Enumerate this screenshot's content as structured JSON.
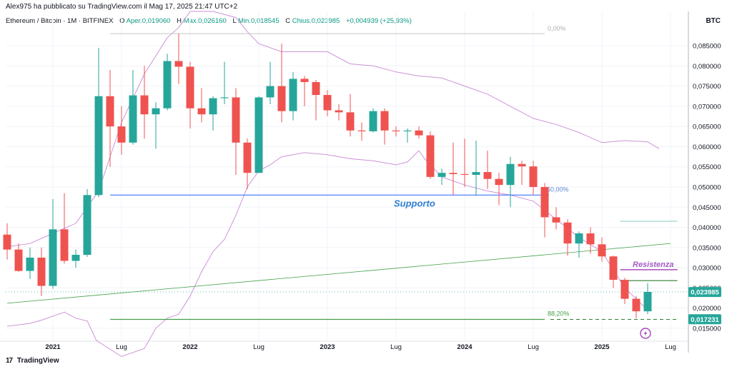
{
  "header": {
    "published": "Alex975 ha pubblicato su TradingView.com il Mag 17, 2025 21:47 UTC+2",
    "symbol": "Ethereum / Bitcoin · 1M · BITFINEX",
    "o_label": "O",
    "open": "Aper.0,019060",
    "h_label": "H",
    "high": "Max.0,026160",
    "l_label": "L",
    "low": "Min.0,018545",
    "c_label": "C",
    "close": "Chius.0,023985",
    "change": "+0,004939 (+25,93%)"
  },
  "currency": "BTC",
  "footer": {
    "logo": "17",
    "brand": "TradingView"
  },
  "colors": {
    "up": "#26a69a",
    "down": "#ef5350",
    "band": "#ce93d8",
    "support": "#2962ff",
    "trend": "#43a047",
    "resist": "#9c27b0"
  },
  "chart_data": {
    "type": "candlestick",
    "y_ticks": [
      "0,085000",
      "0,080000",
      "0,075000",
      "0,070000",
      "0,065000",
      "0,060000",
      "0,055000",
      "0,050000",
      "0,045000",
      "0,040000",
      "0,035000",
      "0,030000",
      "0,025000",
      "0,020000",
      "0,015000"
    ],
    "y_values": [
      0.085,
      0.08,
      0.075,
      0.07,
      0.065,
      0.06,
      0.055,
      0.05,
      0.045,
      0.04,
      0.035,
      0.03,
      0.025,
      0.02,
      0.015
    ],
    "ylim": [
      0.0118,
      0.0935
    ],
    "x_ticks": [
      {
        "label": "2021",
        "i": 4
      },
      {
        "label": "Lug",
        "i": 10
      },
      {
        "label": "2022",
        "i": 16
      },
      {
        "label": "Lug",
        "i": 22
      },
      {
        "label": "2023",
        "i": 28
      },
      {
        "label": "Lug",
        "i": 34
      },
      {
        "label": "2024",
        "i": 40
      },
      {
        "label": "Lug",
        "i": 46
      },
      {
        "label": "2025",
        "i": 52
      },
      {
        "label": "Lug",
        "i": 58
      }
    ],
    "candles": [
      {
        "o": 0.0382,
        "h": 0.041,
        "l": 0.032,
        "c": 0.0345
      },
      {
        "o": 0.0345,
        "h": 0.036,
        "l": 0.029,
        "c": 0.0292
      },
      {
        "o": 0.0292,
        "h": 0.035,
        "l": 0.0272,
        "c": 0.0325
      },
      {
        "o": 0.0325,
        "h": 0.035,
        "l": 0.023,
        "c": 0.0255
      },
      {
        "o": 0.0255,
        "h": 0.047,
        "l": 0.0248,
        "c": 0.0395
      },
      {
        "o": 0.0395,
        "h": 0.0485,
        "l": 0.031,
        "c": 0.0317
      },
      {
        "o": 0.0317,
        "h": 0.0345,
        "l": 0.03,
        "c": 0.0332
      },
      {
        "o": 0.0332,
        "h": 0.0495,
        "l": 0.0327,
        "c": 0.048
      },
      {
        "o": 0.048,
        "h": 0.0845,
        "l": 0.0475,
        "c": 0.0725
      },
      {
        "o": 0.0725,
        "h": 0.079,
        "l": 0.055,
        "c": 0.065
      },
      {
        "o": 0.065,
        "h": 0.07,
        "l": 0.058,
        "c": 0.061
      },
      {
        "o": 0.061,
        "h": 0.079,
        "l": 0.0605,
        "c": 0.0727
      },
      {
        "o": 0.0727,
        "h": 0.08,
        "l": 0.062,
        "c": 0.068
      },
      {
        "o": 0.068,
        "h": 0.071,
        "l": 0.0595,
        "c": 0.0695
      },
      {
        "o": 0.0695,
        "h": 0.083,
        "l": 0.069,
        "c": 0.0812
      },
      {
        "o": 0.0812,
        "h": 0.088,
        "l": 0.0755,
        "c": 0.0798
      },
      {
        "o": 0.0798,
        "h": 0.081,
        "l": 0.0645,
        "c": 0.0695
      },
      {
        "o": 0.0695,
        "h": 0.0745,
        "l": 0.066,
        "c": 0.068
      },
      {
        "o": 0.068,
        "h": 0.0725,
        "l": 0.064,
        "c": 0.072
      },
      {
        "o": 0.072,
        "h": 0.081,
        "l": 0.0705,
        "c": 0.0722
      },
      {
        "o": 0.0722,
        "h": 0.0745,
        "l": 0.053,
        "c": 0.061
      },
      {
        "o": 0.061,
        "h": 0.062,
        "l": 0.0495,
        "c": 0.0535
      },
      {
        "o": 0.0535,
        "h": 0.0725,
        "l": 0.0535,
        "c": 0.0722
      },
      {
        "o": 0.0722,
        "h": 0.081,
        "l": 0.0705,
        "c": 0.075
      },
      {
        "o": 0.075,
        "h": 0.0855,
        "l": 0.066,
        "c": 0.0688
      },
      {
        "o": 0.0688,
        "h": 0.0785,
        "l": 0.0665,
        "c": 0.0768
      },
      {
        "o": 0.0768,
        "h": 0.0775,
        "l": 0.07,
        "c": 0.076
      },
      {
        "o": 0.076,
        "h": 0.0765,
        "l": 0.0665,
        "c": 0.0728
      },
      {
        "o": 0.0728,
        "h": 0.074,
        "l": 0.0675,
        "c": 0.069
      },
      {
        "o": 0.069,
        "h": 0.0705,
        "l": 0.0665,
        "c": 0.0685
      },
      {
        "o": 0.0685,
        "h": 0.073,
        "l": 0.0625,
        "c": 0.064
      },
      {
        "o": 0.064,
        "h": 0.066,
        "l": 0.0615,
        "c": 0.0638
      },
      {
        "o": 0.0638,
        "h": 0.0695,
        "l": 0.0635,
        "c": 0.0688
      },
      {
        "o": 0.0688,
        "h": 0.0695,
        "l": 0.0605,
        "c": 0.064
      },
      {
        "o": 0.064,
        "h": 0.065,
        "l": 0.0625,
        "c": 0.0638
      },
      {
        "o": 0.0638,
        "h": 0.0645,
        "l": 0.061,
        "c": 0.064
      },
      {
        "o": 0.064,
        "h": 0.065,
        "l": 0.062,
        "c": 0.0628
      },
      {
        "o": 0.0628,
        "h": 0.0638,
        "l": 0.052,
        "c": 0.0525
      },
      {
        "o": 0.0525,
        "h": 0.0545,
        "l": 0.0505,
        "c": 0.0535
      },
      {
        "o": 0.0535,
        "h": 0.061,
        "l": 0.048,
        "c": 0.0532
      },
      {
        "o": 0.0532,
        "h": 0.062,
        "l": 0.05,
        "c": 0.053
      },
      {
        "o": 0.053,
        "h": 0.0615,
        "l": 0.0478,
        "c": 0.0537
      },
      {
        "o": 0.0537,
        "h": 0.059,
        "l": 0.0495,
        "c": 0.052
      },
      {
        "o": 0.052,
        "h": 0.0535,
        "l": 0.0455,
        "c": 0.0505
      },
      {
        "o": 0.0505,
        "h": 0.0575,
        "l": 0.045,
        "c": 0.0557
      },
      {
        "o": 0.0557,
        "h": 0.0565,
        "l": 0.0505,
        "c": 0.0551
      },
      {
        "o": 0.0551,
        "h": 0.0565,
        "l": 0.048,
        "c": 0.05
      },
      {
        "o": 0.05,
        "h": 0.051,
        "l": 0.0375,
        "c": 0.0425
      },
      {
        "o": 0.0425,
        "h": 0.045,
        "l": 0.0395,
        "c": 0.0412
      },
      {
        "o": 0.0412,
        "h": 0.042,
        "l": 0.033,
        "c": 0.036
      },
      {
        "o": 0.036,
        "h": 0.039,
        "l": 0.0325,
        "c": 0.0385
      },
      {
        "o": 0.0385,
        "h": 0.04,
        "l": 0.0335,
        "c": 0.0358
      },
      {
        "o": 0.0358,
        "h": 0.0375,
        "l": 0.0315,
        "c": 0.0328
      },
      {
        "o": 0.0328,
        "h": 0.033,
        "l": 0.025,
        "c": 0.027
      },
      {
        "o": 0.027,
        "h": 0.0275,
        "l": 0.021,
        "c": 0.0223
      },
      {
        "o": 0.0223,
        "h": 0.023,
        "l": 0.0175,
        "c": 0.0192
      },
      {
        "o": 0.0192,
        "h": 0.0262,
        "l": 0.0185,
        "c": 0.024
      }
    ],
    "band_upper": [
      {
        "i": 0,
        "v": 0.0352
      },
      {
        "i": 2,
        "v": 0.036
      },
      {
        "i": 4,
        "v": 0.0385
      },
      {
        "i": 6,
        "v": 0.041
      },
      {
        "i": 8,
        "v": 0.049
      },
      {
        "i": 10,
        "v": 0.066
      },
      {
        "i": 12,
        "v": 0.078
      },
      {
        "i": 14,
        "v": 0.087
      },
      {
        "i": 15,
        "v": 0.0895
      },
      {
        "i": 16,
        "v": 0.0935
      },
      {
        "i": 18,
        "v": 0.0935
      },
      {
        "i": 20,
        "v": 0.092
      },
      {
        "i": 21,
        "v": 0.0885
      },
      {
        "i": 22,
        "v": 0.0855
      },
      {
        "i": 24,
        "v": 0.0835
      },
      {
        "i": 26,
        "v": 0.0835
      },
      {
        "i": 28,
        "v": 0.0835
      },
      {
        "i": 30,
        "v": 0.0805
      },
      {
        "i": 32,
        "v": 0.08
      },
      {
        "i": 34,
        "v": 0.0785
      },
      {
        "i": 36,
        "v": 0.0775
      },
      {
        "i": 38,
        "v": 0.077
      },
      {
        "i": 40,
        "v": 0.075
      },
      {
        "i": 42,
        "v": 0.073
      },
      {
        "i": 44,
        "v": 0.07
      },
      {
        "i": 46,
        "v": 0.067
      },
      {
        "i": 48,
        "v": 0.0655
      },
      {
        "i": 50,
        "v": 0.0635
      },
      {
        "i": 52,
        "v": 0.061
      },
      {
        "i": 54,
        "v": 0.0615
      },
      {
        "i": 56,
        "v": 0.0612
      },
      {
        "i": 57,
        "v": 0.0595
      }
    ],
    "band_lower": [
      {
        "i": 0,
        "v": 0.0155
      },
      {
        "i": 2,
        "v": 0.0162
      },
      {
        "i": 3,
        "v": 0.017
      },
      {
        "i": 5,
        "v": 0.019
      },
      {
        "i": 6,
        "v": 0.0175
      },
      {
        "i": 7,
        "v": 0.0168
      },
      {
        "i": 7.8,
        "v": 0.012
      },
      {
        "i": 10,
        "v": 0.008
      },
      {
        "i": 12,
        "v": 0.01
      },
      {
        "i": 13,
        "v": 0.015
      },
      {
        "i": 14,
        "v": 0.0175
      },
      {
        "i": 15,
        "v": 0.0185
      },
      {
        "i": 16,
        "v": 0.023
      },
      {
        "i": 17,
        "v": 0.029
      },
      {
        "i": 18,
        "v": 0.034
      },
      {
        "i": 19,
        "v": 0.037
      },
      {
        "i": 20,
        "v": 0.043
      },
      {
        "i": 21,
        "v": 0.05
      },
      {
        "i": 22,
        "v": 0.054
      },
      {
        "i": 23,
        "v": 0.0555
      },
      {
        "i": 24,
        "v": 0.0575
      },
      {
        "i": 26,
        "v": 0.0585
      },
      {
        "i": 28,
        "v": 0.058
      },
      {
        "i": 30,
        "v": 0.057
      },
      {
        "i": 32,
        "v": 0.0565
      },
      {
        "i": 34,
        "v": 0.0555
      },
      {
        "i": 35,
        "v": 0.0562
      },
      {
        "i": 36,
        "v": 0.059
      },
      {
        "i": 36.5,
        "v": 0.057
      },
      {
        "i": 38,
        "v": 0.0525
      },
      {
        "i": 40,
        "v": 0.0505
      },
      {
        "i": 42,
        "v": 0.049
      },
      {
        "i": 44,
        "v": 0.048
      },
      {
        "i": 46,
        "v": 0.0465
      },
      {
        "i": 48,
        "v": 0.042
      },
      {
        "i": 50,
        "v": 0.0375
      },
      {
        "i": 52,
        "v": 0.034
      },
      {
        "i": 54,
        "v": 0.025
      },
      {
        "i": 56,
        "v": 0.0195
      }
    ],
    "support": {
      "label": "Supporto",
      "value": 0.048,
      "from": 9,
      "to": 47
    },
    "fib_top": {
      "label": "0,00%",
      "value": 0.088,
      "from": 9,
      "to": 47
    },
    "fib_mid": {
      "label": "50,00%",
      "value": 0.048
    },
    "fib_bottom": {
      "label": "88,20%",
      "value": 0.0172,
      "from": 9,
      "to": 47
    },
    "resistance": {
      "label": "Resistenza",
      "value": 0.0295,
      "from": 53.6,
      "to": 58.6
    },
    "resistance_green": {
      "value": 0.0268,
      "from": 53.6,
      "to": 58.6
    },
    "level_right": {
      "value": 0.0415,
      "from": 53.6,
      "to": 58.6
    },
    "trendline": {
      "from_i": 0,
      "from_v": 0.0212,
      "to_i": 58,
      "to_v": 0.036
    },
    "dashed_level": {
      "value": 0.0172,
      "from": 47.5,
      "to": 58.6
    },
    "dotted_current": {
      "value": 0.024
    },
    "price_labels": [
      {
        "label": "0,023985",
        "value": 0.02398
      },
      {
        "label": "0,017231",
        "value": 0.01723
      }
    ]
  }
}
